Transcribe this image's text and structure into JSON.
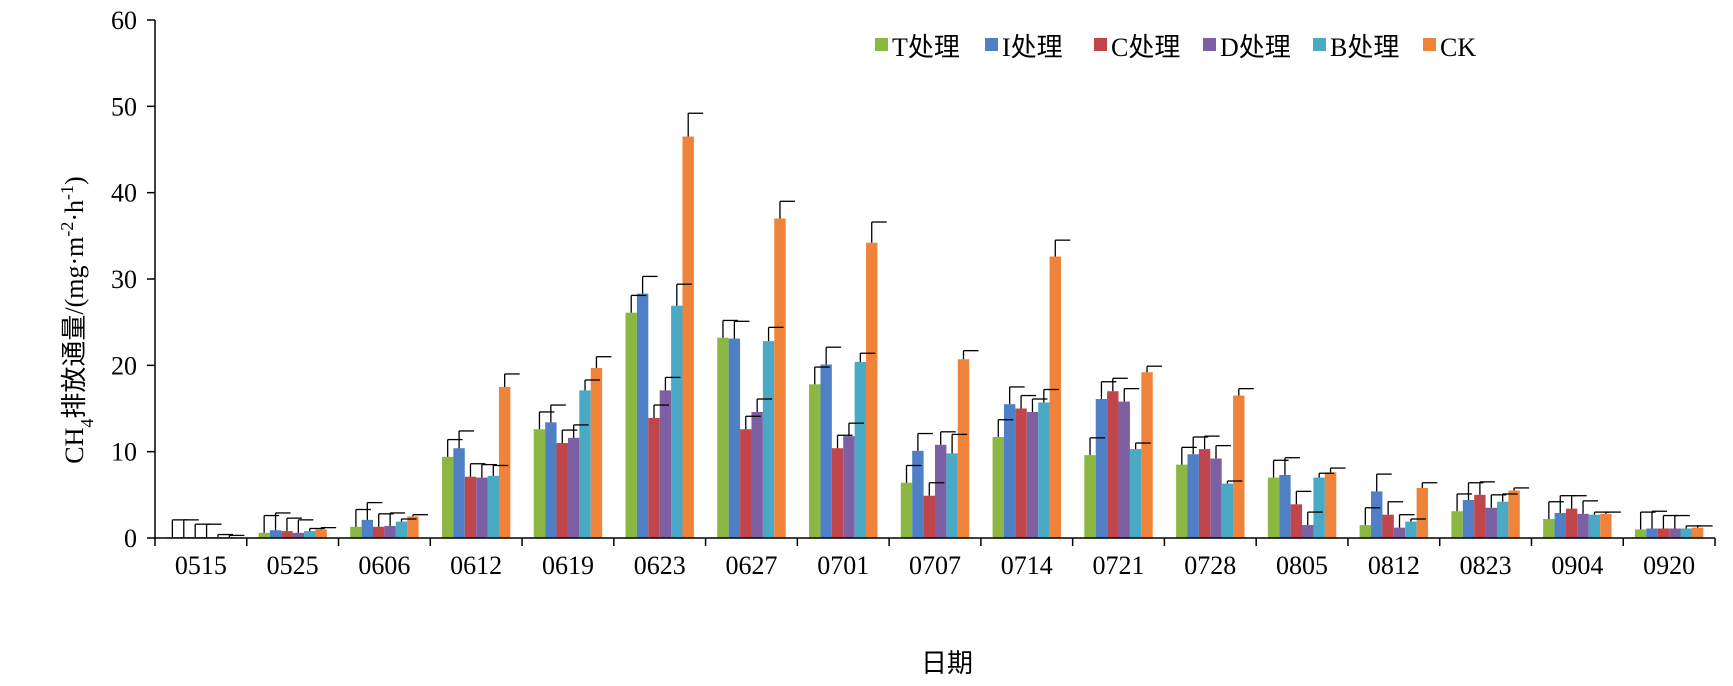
{
  "chart_data": {
    "type": "bar",
    "title": "",
    "xlabel": "日期",
    "ylabel": {
      "prefix": "CH",
      "sub": "4",
      "middle": "排放通量/(mg",
      "dot1": "·",
      "m": "m",
      "exp1": "-2",
      "dot2": "·",
      "h": "h",
      "exp2": "-1",
      "suffix": ")"
    },
    "ylim": [
      0,
      60
    ],
    "yticks": [
      0,
      10,
      20,
      30,
      40,
      50,
      60
    ],
    "grid": false,
    "legend_position": "top-right",
    "categories": [
      "0515",
      "0525",
      "0606",
      "0612",
      "0619",
      "0623",
      "0627",
      "0701",
      "0707",
      "0714",
      "0721",
      "0728",
      "0805",
      "0812",
      "0823",
      "0904",
      "0920"
    ],
    "series": [
      {
        "name": "T处理",
        "color": "#8DB743",
        "values": [
          0.1,
          0.6,
          1.3,
          9.4,
          12.6,
          26.1,
          23.2,
          17.8,
          6.4,
          11.7,
          9.6,
          8.5,
          7.0,
          1.5,
          3.1,
          2.2,
          1.0
        ],
        "errors": [
          2.0,
          2.0,
          2.0,
          2.0,
          2.0,
          2.0,
          2.0,
          2.0,
          2.0,
          2.0,
          2.0,
          2.0,
          2.0,
          2.0,
          2.0,
          2.0,
          2.0
        ]
      },
      {
        "name": "I处理",
        "color": "#4F7FC4",
        "values": [
          0.1,
          0.9,
          2.1,
          10.4,
          13.4,
          28.3,
          23.1,
          20.1,
          10.1,
          15.5,
          16.1,
          9.7,
          7.3,
          5.4,
          4.4,
          2.9,
          1.1
        ],
        "errors": [
          2.0,
          2.0,
          2.0,
          2.0,
          2.0,
          2.0,
          2.0,
          2.0,
          2.0,
          2.0,
          2.0,
          2.0,
          2.0,
          2.0,
          2.0,
          2.0,
          2.0
        ]
      },
      {
        "name": "C处理",
        "color": "#C0464B",
        "values": [
          0.1,
          0.8,
          1.3,
          7.1,
          11.0,
          13.9,
          12.6,
          10.4,
          4.9,
          15.0,
          17.0,
          10.3,
          3.9,
          2.7,
          5.0,
          3.4,
          1.1
        ],
        "errors": [
          1.5,
          1.5,
          1.5,
          1.5,
          1.5,
          1.5,
          1.5,
          1.5,
          1.5,
          1.5,
          1.5,
          1.5,
          1.5,
          1.5,
          1.5,
          1.5,
          1.5
        ]
      },
      {
        "name": "D处理",
        "color": "#7D5FA3",
        "values": [
          0.1,
          0.6,
          1.4,
          7.0,
          11.6,
          17.1,
          14.6,
          11.8,
          10.8,
          14.6,
          15.8,
          9.2,
          1.5,
          1.2,
          3.5,
          2.8,
          1.1
        ],
        "errors": [
          1.5,
          1.5,
          1.5,
          1.5,
          1.5,
          1.5,
          1.5,
          1.5,
          1.5,
          1.5,
          1.5,
          1.5,
          1.5,
          1.5,
          1.5,
          1.5,
          1.5
        ]
      },
      {
        "name": "B处理",
        "color": "#4AA9C4",
        "values": [
          0.1,
          0.8,
          1.9,
          7.2,
          17.1,
          26.9,
          22.8,
          20.4,
          9.8,
          15.7,
          10.3,
          6.3,
          7.0,
          1.9,
          4.2,
          2.7,
          1.1
        ],
        "errors": [
          0.3,
          0.3,
          0.3,
          1.2,
          1.2,
          2.5,
          1.6,
          1.0,
          2.2,
          1.5,
          0.7,
          0.3,
          0.5,
          0.3,
          0.9,
          0.3,
          0.3
        ]
      },
      {
        "name": "CK",
        "color": "#F0833A",
        "values": [
          0.1,
          1.0,
          2.5,
          17.5,
          19.7,
          46.5,
          37.0,
          34.2,
          20.7,
          32.6,
          19.2,
          16.5,
          7.6,
          5.8,
          5.5,
          2.8,
          1.2
        ],
        "errors": [
          0.2,
          0.2,
          0.2,
          1.5,
          1.3,
          2.7,
          2.0,
          2.4,
          1.0,
          1.9,
          0.7,
          0.8,
          0.5,
          0.6,
          0.3,
          0.2,
          0.2
        ]
      }
    ]
  }
}
